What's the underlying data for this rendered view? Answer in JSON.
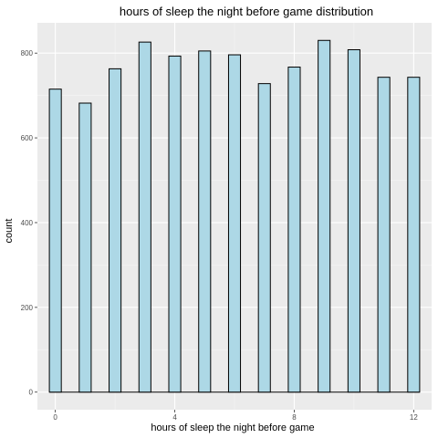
{
  "chart_data": {
    "type": "bar",
    "title": "hours of sleep the night before game  distribution",
    "xlabel": "hours of sleep the night before game",
    "ylabel": "count",
    "x": [
      0,
      1,
      2,
      3,
      4,
      5,
      6,
      7,
      8,
      9,
      10,
      11,
      12
    ],
    "values": [
      715,
      682,
      763,
      826,
      793,
      805,
      796,
      728,
      767,
      830,
      808,
      743,
      743
    ],
    "xlim": [
      -0.6,
      12.6
    ],
    "ylim": [
      -41.5,
      871.5
    ],
    "xticks": [
      0,
      4,
      8,
      12
    ],
    "xtick_labels": [
      "0",
      "4",
      "8",
      "12"
    ],
    "yticks": [
      0,
      200,
      400,
      600,
      800
    ],
    "ytick_labels": [
      "0",
      "200",
      "400",
      "600",
      "800"
    ],
    "grid": true,
    "colors": {
      "bar_fill": "#add8e6",
      "bar_stroke": "#000000",
      "panel_bg": "#ebebeb",
      "grid_major": "#ffffff",
      "grid_minor": "#f5f5f5"
    }
  }
}
